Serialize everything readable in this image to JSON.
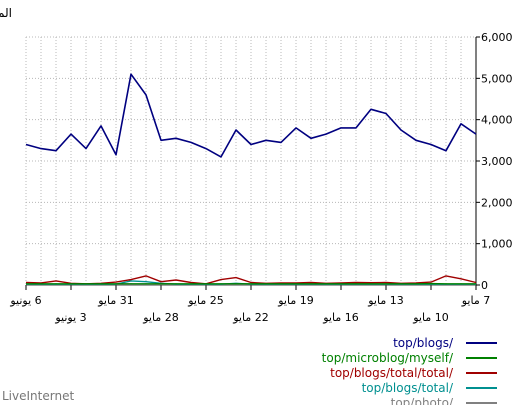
{
  "watermark": "LiveInternet",
  "chart_data": {
    "type": "line",
    "ylabel": "المرات",
    "ylim": [
      0,
      6000
    ],
    "yticks": [
      0,
      1000,
      2000,
      3000,
      4000,
      5000,
      6000
    ],
    "ytick_labels": [
      "0",
      "1,000",
      "2,000",
      "3,000",
      "4,000",
      "5,000",
      "6,000"
    ],
    "x_range": [
      "2011-05-07",
      "2011-06-06"
    ],
    "x_ticks_top": [
      {
        "date": "2011-05-07",
        "label": "7 مايو"
      },
      {
        "date": "2011-05-10",
        "label": "10 مايو"
      },
      {
        "date": "2011-05-13",
        "label": "13 مايو"
      },
      {
        "date": "2011-05-16",
        "label": "16 مايو"
      },
      {
        "date": "2011-05-19",
        "label": "19 مايو"
      },
      {
        "date": "2011-05-22",
        "label": "22 مايو"
      },
      {
        "date": "2011-05-25",
        "label": "25 مايو"
      },
      {
        "date": "2011-05-28",
        "label": "28 مايو"
      },
      {
        "date": "2011-05-31",
        "label": "31 مايو"
      },
      {
        "date": "2011-06-03",
        "label": "3 يونيو"
      },
      {
        "date": "2011-06-06",
        "label": "6 يونيو"
      }
    ],
    "grid": true,
    "legend_position": "bottom-right",
    "series": [
      {
        "name": "top/blogs/",
        "color": "#000080",
        "width": 1.6,
        "values": [
          3650,
          3900,
          3250,
          3400,
          3500,
          3750,
          4150,
          4250,
          3800,
          3800,
          3650,
          3550,
          3800,
          3450,
          3500,
          3400,
          3750,
          3100,
          3300,
          3450,
          3550,
          3500,
          4600,
          5100,
          3150,
          3850,
          3300,
          3650,
          3250,
          3300,
          3400
        ]
      },
      {
        "name": "top/microblog/myself/",
        "color": "#008000",
        "width": 1.4,
        "values": [
          30,
          30,
          30,
          35,
          30,
          30,
          30,
          30,
          30,
          30,
          30,
          30,
          30,
          30,
          30,
          30,
          30,
          30,
          30,
          30,
          30,
          30,
          30,
          30,
          30,
          30,
          30,
          30,
          30,
          30,
          30
        ]
      },
      {
        "name": "top/blogs/total/total/",
        "color": "#a00000",
        "width": 1.4,
        "values": [
          60,
          150,
          220,
          70,
          50,
          40,
          60,
          55,
          60,
          50,
          40,
          60,
          50,
          50,
          40,
          60,
          180,
          130,
          30,
          60,
          120,
          80,
          220,
          130,
          70,
          40,
          30,
          40,
          100,
          50,
          60
        ]
      },
      {
        "name": "top/blogs/total/",
        "color": "#009090",
        "width": 1.4,
        "values": [
          20,
          20,
          20,
          20,
          20,
          20,
          20,
          20,
          20,
          20,
          20,
          20,
          20,
          20,
          20,
          20,
          40,
          20,
          20,
          20,
          20,
          40,
          80,
          100,
          20,
          20,
          20,
          20,
          20,
          20,
          20
        ]
      },
      {
        "name": "top/photo/",
        "color": "#808080",
        "width": 1.2,
        "values": [
          10,
          10,
          10,
          10,
          10,
          10,
          10,
          10,
          10,
          10,
          10,
          10,
          10,
          10,
          10,
          10,
          10,
          10,
          10,
          10,
          10,
          10,
          10,
          10,
          10,
          10,
          10,
          10,
          10,
          10,
          10
        ]
      }
    ]
  }
}
